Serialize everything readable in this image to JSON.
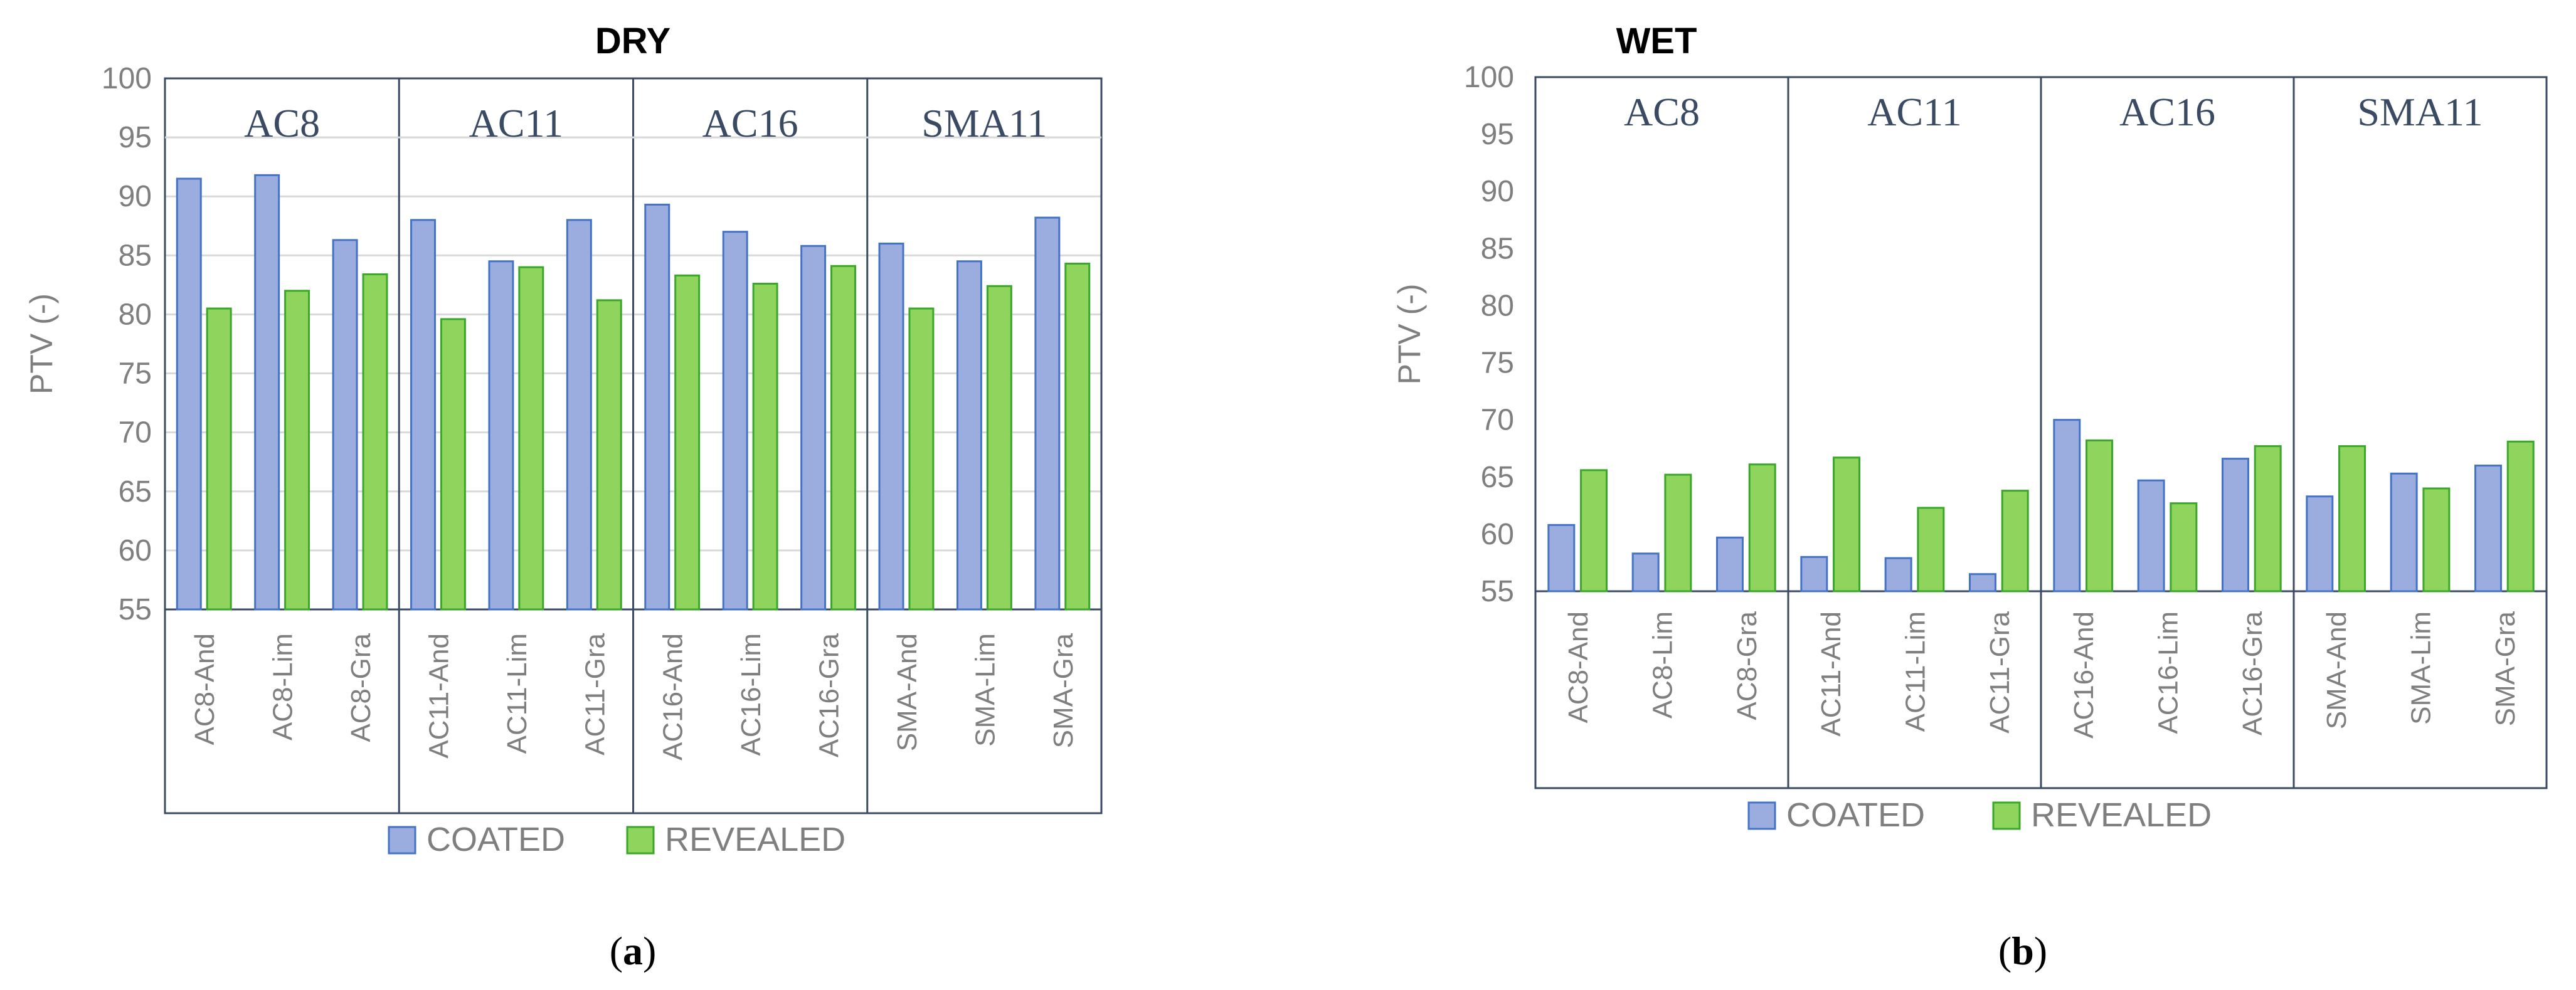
{
  "colors": {
    "coated_fill": "#9aadde",
    "coated_stroke": "#4472c4",
    "revealed_fill": "#8fd45c",
    "revealed_stroke": "#3aa62a",
    "grid": "#d9d9d9",
    "frame": "#3a4a63",
    "text": "#7f7f7f"
  },
  "chart_data": [
    {
      "type": "bar",
      "panel": "(a)",
      "panel_paren_open": "(",
      "panel_letter": "a",
      "panel_paren_close": ")",
      "title": "DRY",
      "ylabel": "PTV (-)",
      "xlabel": "",
      "ylim": [
        55,
        100
      ],
      "yticks": [
        55,
        60,
        65,
        70,
        75,
        80,
        85,
        90,
        95,
        100
      ],
      "grid": true,
      "legend": "bottom",
      "groups": [
        "AC8",
        "AC11",
        "AC16",
        "SMA11"
      ],
      "categories": [
        "AC8-And",
        "AC8-Lim",
        "AC8-Gra",
        "AC11-And",
        "AC11-Lim",
        "AC11-Gra",
        "AC16-And",
        "AC16-Lim",
        "AC16-Gra",
        "SMA-And",
        "SMA-Lim",
        "SMA-Gra"
      ],
      "series": [
        {
          "name": "COATED",
          "values": [
            91.5,
            91.8,
            86.3,
            88.0,
            84.5,
            88.0,
            89.3,
            87.0,
            85.8,
            86.0,
            84.5,
            88.2
          ]
        },
        {
          "name": "REVEALED",
          "values": [
            80.5,
            82.0,
            83.4,
            79.6,
            84.0,
            81.2,
            83.3,
            82.6,
            84.1,
            80.5,
            82.4,
            84.3
          ]
        }
      ]
    },
    {
      "type": "bar",
      "panel": "(b)",
      "panel_paren_open": "(",
      "panel_letter": "b",
      "panel_paren_close": ")",
      "title": "WET",
      "ylabel": "PTV (-)",
      "xlabel": "",
      "ylim": [
        55,
        100
      ],
      "yticks": [
        55,
        60,
        65,
        70,
        75,
        80,
        85,
        90,
        95,
        100
      ],
      "grid": false,
      "legend": "bottom",
      "groups": [
        "AC8",
        "AC11",
        "AC16",
        "SMA11"
      ],
      "categories": [
        "AC8-And",
        "AC8-Lim",
        "AC8-Gra",
        "AC11-And",
        "AC11-Lim",
        "AC11-Gra",
        "AC16-And",
        "AC16-Lim",
        "AC16-Gra",
        "SMA-And",
        "SMA-Lim",
        "SMA-Gra"
      ],
      "series": [
        {
          "name": "COATED",
          "values": [
            60.8,
            58.3,
            59.7,
            58.0,
            57.9,
            56.5,
            70.0,
            64.7,
            66.6,
            63.3,
            65.3,
            66.0
          ]
        },
        {
          "name": "REVEALED",
          "values": [
            65.6,
            65.2,
            66.1,
            66.7,
            62.3,
            63.8,
            68.2,
            62.7,
            67.7,
            67.7,
            64.0,
            68.1
          ]
        }
      ]
    }
  ]
}
